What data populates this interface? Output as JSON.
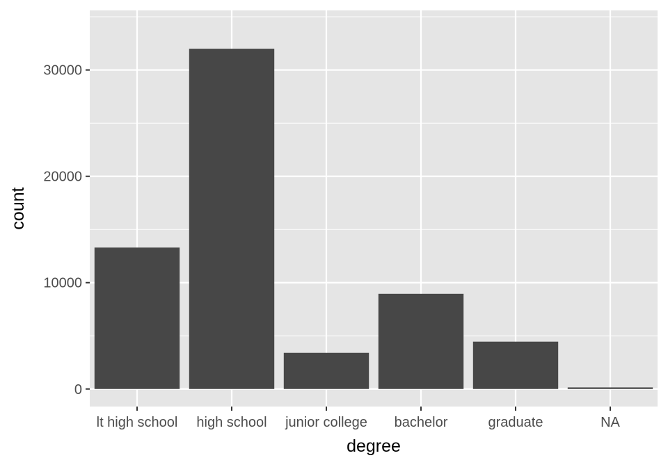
{
  "chart_data": {
    "type": "bar",
    "title": "",
    "xlabel": "degree",
    "ylabel": "count",
    "categories": [
      "lt high school",
      "high school",
      "junior college",
      "bachelor",
      "graduate",
      "NA"
    ],
    "values": [
      13300,
      32000,
      3400,
      8950,
      4450,
      150
    ],
    "ylim": [
      -1650,
      35600
    ],
    "yticks": [
      0,
      10000,
      20000,
      30000
    ],
    "ytick_labels": [
      "0",
      "10000",
      "20000",
      "30000"
    ],
    "grid": true,
    "legend": "none",
    "colors": {
      "panel": "#e5e5e5",
      "grid": "#ffffff",
      "bar": "#474747",
      "tick": "#333333"
    }
  }
}
